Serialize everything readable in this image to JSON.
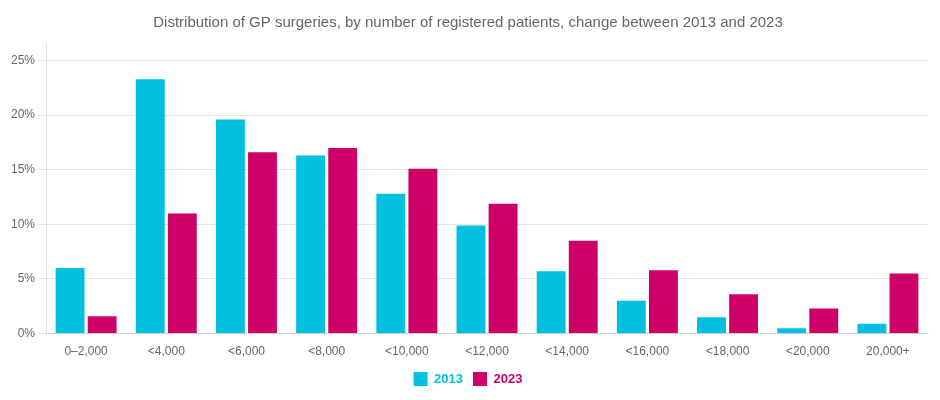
{
  "chart_data": {
    "type": "bar",
    "title": "Distribution of GP surgeries, by number of registered patients, change between 2013 and 2023",
    "categories": [
      "0–2,000",
      "<4,000",
      "<6,000",
      "<8,000",
      "<10,000",
      "<12,000",
      "<14,000",
      "<16,000",
      "<18,000",
      "<20,000",
      "20,000+"
    ],
    "series": [
      {
        "name": "2013",
        "color": "#00BFDF",
        "values": [
          0.06,
          0.233,
          0.196,
          0.163,
          0.128,
          0.099,
          0.057,
          0.03,
          0.015,
          0.005,
          0.009
        ]
      },
      {
        "name": "2023",
        "color": "#CC0066",
        "values": [
          0.016,
          0.11,
          0.166,
          0.17,
          0.151,
          0.119,
          0.085,
          0.058,
          0.036,
          0.023,
          0.055
        ]
      }
    ],
    "ylim": [
      0,
      0.267
    ],
    "yticks": [
      {
        "value": 0,
        "label": "0%"
      },
      {
        "value": 0.05,
        "label": "5%"
      },
      {
        "value": 0.1,
        "label": "10%"
      },
      {
        "value": 0.15,
        "label": "15%"
      },
      {
        "value": 0.2,
        "label": "20%"
      },
      {
        "value": 0.25,
        "label": "25%"
      }
    ],
    "grid": true,
    "legend": "bottom"
  }
}
